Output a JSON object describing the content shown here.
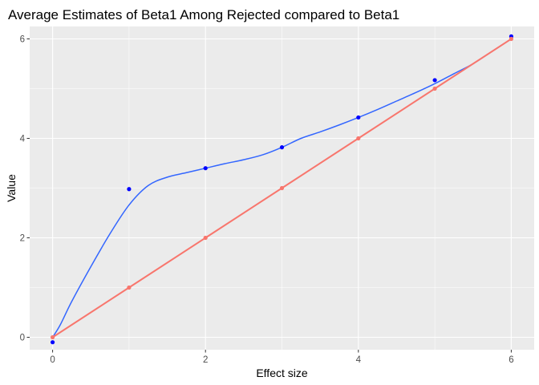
{
  "chart_data": {
    "type": "scatter",
    "title": "Average Estimates of Beta1 Among Rejected compared to Beta1",
    "xlabel": "Effect size",
    "ylabel": "Value",
    "xlim": [
      -0.3,
      6.3
    ],
    "ylim": [
      -0.25,
      6.25
    ],
    "x_ticks": [
      0,
      2,
      4,
      6
    ],
    "x_minor_ticks": [
      1,
      3,
      5
    ],
    "y_ticks": [
      0,
      2,
      4,
      6
    ],
    "y_minor_ticks": [
      1,
      3,
      5
    ],
    "grid": true,
    "legend": "none",
    "colors": {
      "panel_background": "#ebebeb",
      "grid": "#ffffff",
      "estimate_points": "#0000ff",
      "estimate_smooth": "#3366ff",
      "true_value": "#f8766d"
    },
    "series": [
      {
        "kind": "points",
        "x": [
          0,
          1,
          2,
          3,
          4,
          5,
          6
        ],
        "y": [
          -0.1,
          2.98,
          3.4,
          3.82,
          4.42,
          5.17,
          6.05
        ]
      },
      {
        "kind": "smooth",
        "x": [
          0,
          0.1,
          0.25,
          0.5,
          0.75,
          1.0,
          1.25,
          1.5,
          1.75,
          2.0,
          2.25,
          2.5,
          2.75,
          3.0,
          3.25,
          3.5,
          3.75,
          4.0,
          4.25,
          4.5,
          4.75,
          5.0,
          5.25,
          5.5,
          5.75,
          6.0
        ],
        "y": [
          0.0,
          0.25,
          0.72,
          1.42,
          2.08,
          2.66,
          3.05,
          3.22,
          3.31,
          3.4,
          3.49,
          3.57,
          3.67,
          3.82,
          4.0,
          4.13,
          4.27,
          4.42,
          4.58,
          4.75,
          4.92,
          5.1,
          5.3,
          5.5,
          5.75,
          6.0
        ]
      },
      {
        "kind": "line-points",
        "x": [
          0,
          1,
          2,
          3,
          4,
          5,
          6
        ],
        "y": [
          0,
          1,
          2,
          3,
          4,
          5,
          6
        ]
      }
    ]
  }
}
